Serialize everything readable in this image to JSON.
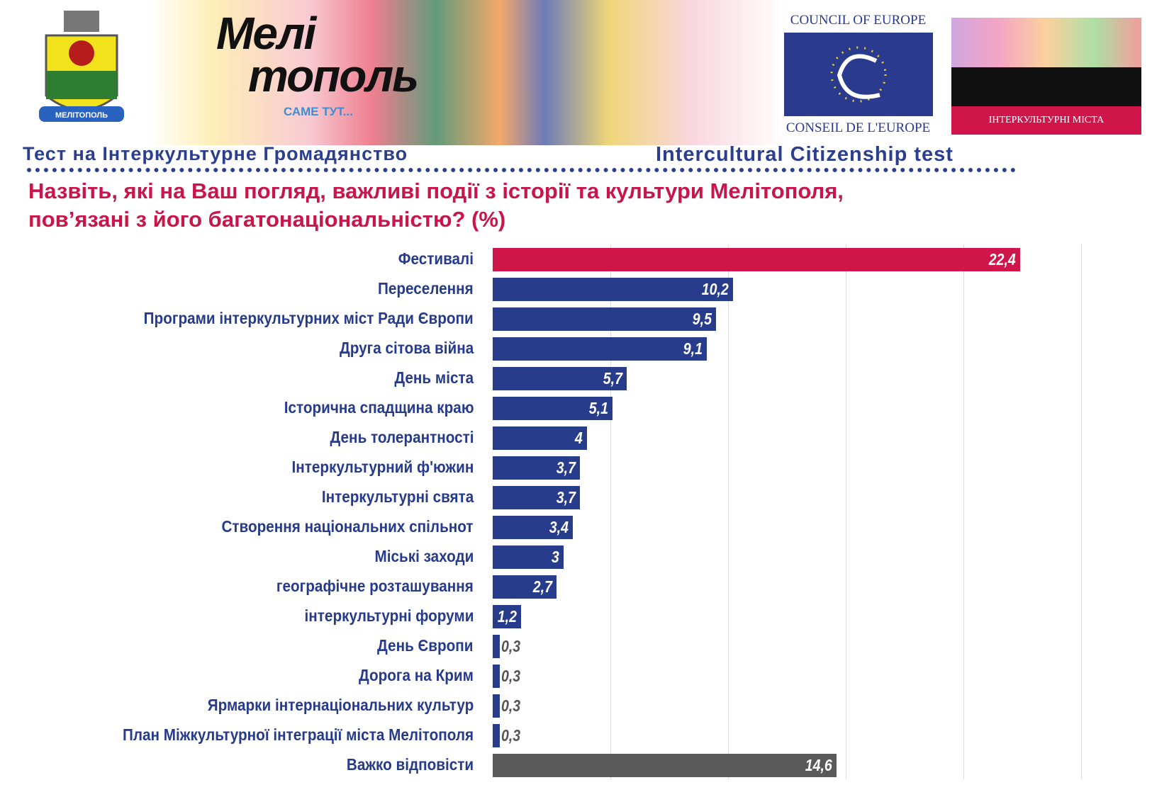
{
  "header": {
    "coat_label": "МЕЛІТОПОЛЬ",
    "logo_line1": "Мелі",
    "logo_line2": "тополь",
    "logo_slogan": "САМЕ ТУТ...",
    "coe_top": "COUNCIL OF EUROPE",
    "coe_bottom": "CONSEIL DE L'EUROPE",
    "icc_label": "ІНТЕРКУЛЬТУРНІ МІСТА",
    "subtitle_ua": "Тест на Інтеркультурне Громадянство",
    "subtitle_en": "Intercultural Citizenship test"
  },
  "chart_data": {
    "type": "bar",
    "orientation": "horizontal",
    "title_line1": "Назвіть, які на Ваш погляд, важливі події з історії та культури Мелітополя,",
    "title_line2": "пов’язані з його багатонаціональністю? (%)",
    "categories": [
      "Фестивалі",
      "Переселення",
      "Програми інтеркультурних міст Ради Європи",
      "Друга сітова війна",
      "День міста",
      "Історична спадщина краю",
      "День толерантності",
      "Інтеркультурний ф'южин",
      "Інтеркультурні свята",
      "Створення національних спільнот",
      "Міські заходи",
      "географічне розташування",
      "інтеркультурні форуми",
      "День Європи",
      "Дорога на Крим",
      "Ярмарки інтернаціональних культур",
      "План Міжкультурної інтеграції міста Мелітополя",
      "Важко відповісти"
    ],
    "values": [
      22.4,
      10.2,
      9.5,
      9.1,
      5.7,
      5.1,
      4,
      3.7,
      3.7,
      3.4,
      3,
      2.7,
      1.2,
      0.3,
      0.3,
      0.3,
      0.3,
      14.6
    ],
    "value_labels": [
      "22,4",
      "10,2",
      "9,5",
      "9,1",
      "5,7",
      "5,1",
      "4",
      "3,7",
      "3,7",
      "3,4",
      "3",
      "2,7",
      "1,2",
      "0,3",
      "0,3",
      "0,3",
      "0,3",
      "14,6"
    ],
    "colors": {
      "highlight": "#d0154a",
      "default": "#283c8c",
      "other": "#5a5a5a"
    },
    "xlim": [
      0,
      25
    ],
    "grid": true
  }
}
